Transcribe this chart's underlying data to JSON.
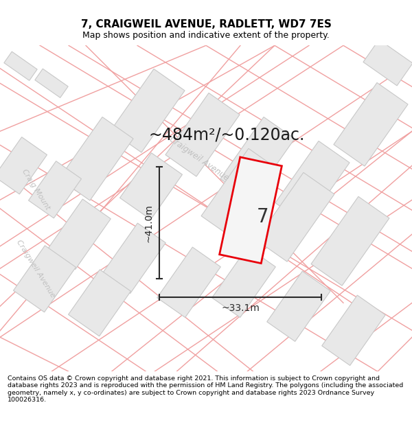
{
  "title": "7, CRAIGWEIL AVENUE, RADLETT, WD7 7ES",
  "subtitle": "Map shows position and indicative extent of the property.",
  "area_text": "~484m²/~0.120ac.",
  "dim_width": "~33.1m",
  "dim_height": "~41.0m",
  "property_number": "7",
  "footer_text": "Contains OS data © Crown copyright and database right 2021. This information is subject to Crown copyright and database rights 2023 and is reproduced with the permission of HM Land Registry. The polygons (including the associated geometry, namely x, y co-ordinates) are subject to Crown copyright and database rights 2023 Ordnance Survey 100026316.",
  "bg_color": "#ffffff",
  "map_bg": "#ffffff",
  "block_fill": "#e8e8e8",
  "block_edge": "#c8c8c8",
  "red_line": "#e8000a",
  "road_line": "#f0a0a0",
  "dim_color": "#2a2a2a",
  "title_color": "#000000",
  "street_color": "#c0c0c0",
  "separator_color": "#cccccc",
  "area_fontsize": 17,
  "number_fontsize": 20,
  "dim_fontsize": 10,
  "title_fontsize": 11,
  "subtitle_fontsize": 9,
  "footer_fontsize": 6.8
}
